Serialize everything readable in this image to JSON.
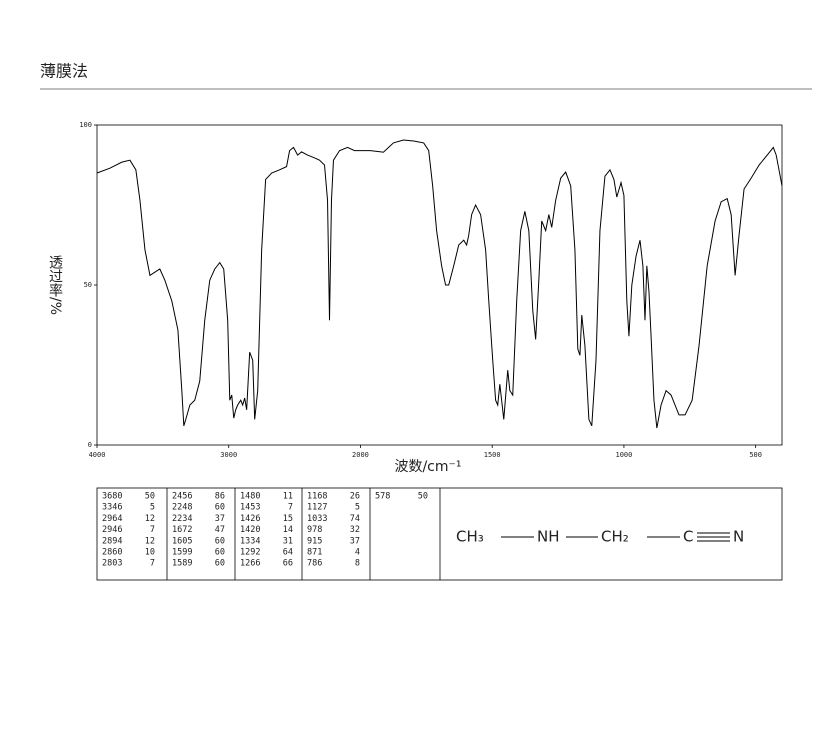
{
  "title": "薄膜法",
  "chart_data": {
    "type": "line",
    "xlabel": "波数/cm⁻¹",
    "ylabel": "透过率/%",
    "xlim": [
      4000,
      400
    ],
    "ylim": [
      0,
      100
    ],
    "xticks": [
      4000,
      3000,
      2000,
      1500,
      1000,
      500
    ],
    "yticks": [
      0,
      50,
      100
    ],
    "x": [
      4000,
      3902,
      3811,
      3750,
      3705,
      3674,
      3636,
      3598,
      3561,
      3523,
      3485,
      3432,
      3386,
      3356,
      3341,
      3326,
      3295,
      3258,
      3220,
      3182,
      3144,
      3106,
      3068,
      3038,
      3008,
      2992,
      2977,
      2962,
      2947,
      2932,
      2909,
      2894,
      2879,
      2864,
      2841,
      2818,
      2803,
      2780,
      2750,
      2720,
      2674,
      2614,
      2561,
      2538,
      2508,
      2477,
      2447,
      2402,
      2348,
      2311,
      2273,
      2250,
      2235,
      2220,
      2205,
      2159,
      2098,
      2045,
      2000,
      1962,
      1913,
      1875,
      1837,
      1798,
      1760,
      1741,
      1726,
      1711,
      1692,
      1677,
      1665,
      1646,
      1627,
      1608,
      1597,
      1589,
      1578,
      1563,
      1544,
      1525,
      1513,
      1498,
      1487,
      1479,
      1471,
      1456,
      1441,
      1433,
      1422,
      1407,
      1392,
      1376,
      1361,
      1346,
      1335,
      1323,
      1312,
      1297,
      1285,
      1274,
      1259,
      1240,
      1221,
      1202,
      1186,
      1175,
      1167,
      1160,
      1148,
      1133,
      1122,
      1106,
      1091,
      1072,
      1053,
      1038,
      1027,
      1011,
      1000,
      989,
      981,
      970,
      954,
      939,
      928,
      920,
      913,
      905,
      897,
      886,
      875,
      859,
      840,
      821,
      791,
      768,
      741,
      715,
      684,
      654,
      631,
      608,
      593,
      578,
      563,
      544,
      517,
      487,
      456,
      433,
      422,
      400
    ],
    "series": [
      {
        "color": "#000000",
        "values": [
          85,
          86.5,
          88.4,
          89,
          86,
          76.5,
          61,
          53,
          54,
          55,
          51.5,
          45,
          36,
          17,
          6,
          8,
          12.5,
          14,
          20,
          39,
          51.5,
          55,
          57,
          55,
          39,
          14,
          15.6,
          8.4,
          11,
          12.5,
          14,
          12.5,
          14.7,
          11,
          29,
          26.5,
          8,
          17,
          61,
          83,
          85,
          86,
          87,
          92,
          93,
          90.6,
          91.6,
          90.6,
          89.7,
          89,
          87.5,
          76.5,
          39,
          76.5,
          89,
          92,
          93,
          92,
          92,
          92,
          91.5,
          94.4,
          95.3,
          95,
          94.4,
          92,
          81,
          67,
          56,
          50,
          50,
          56,
          62.5,
          64,
          62.5,
          65.6,
          72,
          75,
          72,
          61,
          45,
          26.5,
          14,
          12.5,
          19,
          8,
          23.4,
          17,
          15.6,
          45,
          67,
          73,
          67,
          42,
          33,
          51.5,
          70,
          67,
          72,
          68,
          76.5,
          83.4,
          85.3,
          81,
          61,
          30,
          28,
          40.6,
          31,
          8,
          6,
          26.5,
          67,
          84,
          86,
          83,
          77.5,
          82,
          78,
          45,
          34,
          50,
          59,
          64,
          56,
          39,
          56,
          48,
          34,
          14,
          5.3,
          12.5,
          17,
          15.6,
          9.4,
          9.4,
          14,
          31,
          56,
          70,
          76,
          77,
          72,
          53,
          65.6,
          80,
          83.4,
          87.5,
          90.6,
          93,
          90.6,
          81
        ]
      }
    ]
  },
  "peak_table": {
    "columns": [
      [
        [
          "3680",
          "50"
        ],
        [
          "3346",
          "5"
        ],
        [
          "2964",
          "12"
        ],
        [
          "2946",
          "7"
        ],
        [
          "2894",
          "12"
        ],
        [
          "2860",
          "10"
        ],
        [
          "2803",
          "7"
        ]
      ],
      [
        [
          "2456",
          "86"
        ],
        [
          "2248",
          "60"
        ],
        [
          "2234",
          "37"
        ],
        [
          "1672",
          "47"
        ],
        [
          "1605",
          "60"
        ],
        [
          "1599",
          "60"
        ],
        [
          "1589",
          "60"
        ]
      ],
      [
        [
          "1480",
          "11"
        ],
        [
          "1453",
          "7"
        ],
        [
          "1426",
          "15"
        ],
        [
          "1420",
          "14"
        ],
        [
          "1334",
          "31"
        ],
        [
          "1292",
          "64"
        ],
        [
          "1266",
          "66"
        ]
      ],
      [
        [
          "1168",
          "26"
        ],
        [
          "1127",
          "5"
        ],
        [
          "1033",
          "74"
        ],
        [
          "978",
          "32"
        ],
        [
          "915",
          "37"
        ],
        [
          "871",
          "4"
        ],
        [
          "786",
          "8"
        ]
      ],
      [
        [
          "578",
          "50"
        ]
      ]
    ]
  },
  "formula": {
    "groups": [
      "CH₃",
      "NH",
      "CH₂",
      "C",
      "N"
    ]
  }
}
